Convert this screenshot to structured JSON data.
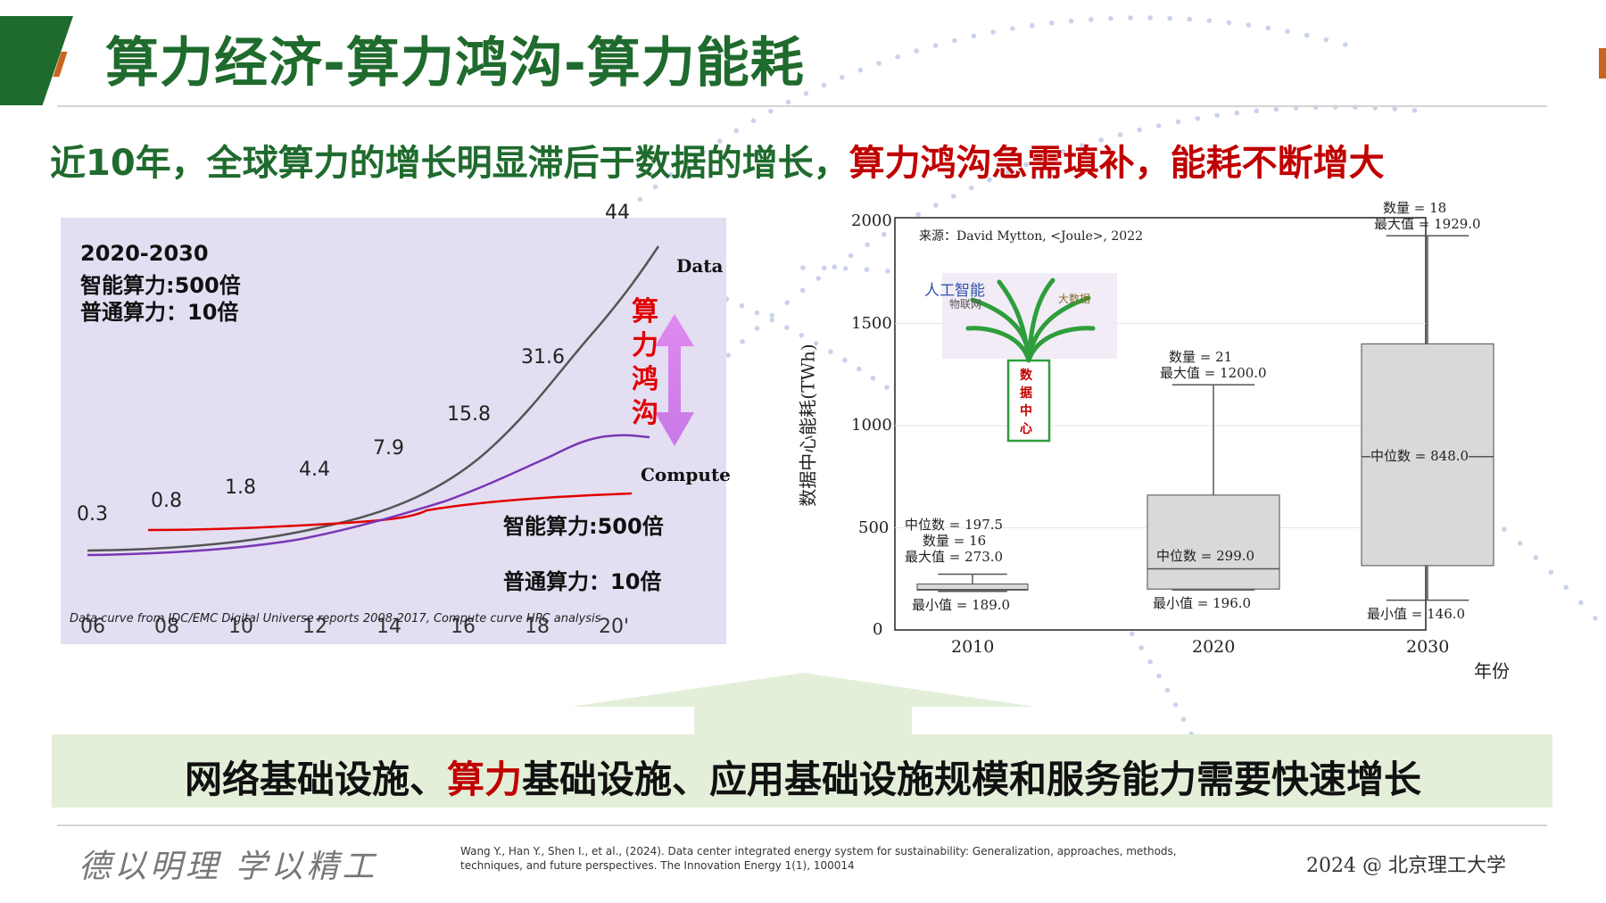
{
  "page": {
    "title": "算力经济-算力鸿沟-算力能耗",
    "subtitle_green": "近10年，全球算力的增长明显滞后于数据的增长，",
    "subtitle_red": "算力鸿沟急需填补，能耗不断增大",
    "banner_part1": "网络基础设施、",
    "banner_part2": "算力",
    "banner_part3": "基础设施、应用基础设施规模和服务能力需要快速增长",
    "motto": "德以明理 学以精工",
    "citation": "Wang Y., Han Y., Shen I., et al., (2024). Data center integrated energy system for sustainability: Generalization, approaches, methods, techniques, and future perspectives. The Innovation Energy 1(1), 100014",
    "copyright": "2024 @ 北京理工大学",
    "colors": {
      "green": "#1f6b2e",
      "red": "#c00000",
      "purple": "#7a36b5",
      "gray_curve": "#555555",
      "banner": "#e3efd9",
      "arrow": "#dd88ee"
    }
  },
  "chart_data": [
    {
      "type": "line",
      "notes": [
        "2020-2030",
        "智能算力:500倍",
        "普通算力：10倍"
      ],
      "x_ticks": [
        "06",
        "08",
        "10",
        "12",
        "14",
        "16",
        "18",
        "20'"
      ],
      "series": [
        {
          "name": "Data",
          "values": [
            0.3,
            0.8,
            1.8,
            4.4,
            7.9,
            15.8,
            31.6,
            44
          ],
          "labels": [
            "0.3",
            "0.8",
            "1.8",
            "4.4",
            "7.9",
            "15.8",
            "31.6",
            "44"
          ]
        },
        {
          "name": "Compute"
        },
        {
          "name": "智能算力:500倍"
        },
        {
          "name": "普通算力：10倍"
        }
      ],
      "gap_label": [
        "算",
        "力",
        "鸿",
        "沟"
      ],
      "source": "Data curve from IDC/EMC Digital Universe reports 2008-2017, Compute curve HPC analysis"
    },
    {
      "type": "box",
      "source": "来源：David Mytton, <Joule>, 2022",
      "ylabel": "数据中心能耗(TWh)",
      "xlabel": "年份",
      "ylim": [
        0,
        2000
      ],
      "y_ticks": [
        "0",
        "500",
        "1000",
        "1500",
        "2000"
      ],
      "inset_label": [
        "数",
        "据",
        "中",
        "心"
      ],
      "inset_words": [
        "人工智能",
        "物联网",
        "大数据"
      ],
      "boxes": [
        {
          "year": "2010",
          "min": 189.0,
          "q1": 195,
          "median": 197.5,
          "q3": 225,
          "max": 273.0,
          "count": 16,
          "labels": [
            "中位数 = 197.5",
            "数量 = 16",
            "最大值 = 273.0"
          ],
          "min_label": "最小值 = 189.0"
        },
        {
          "year": "2020",
          "min": 196.0,
          "q1": 200,
          "median": 299.0,
          "q3": 660,
          "max": 1200.0,
          "count": 21,
          "labels": [
            "数量 = 21",
            "最大值 = 1200.0"
          ],
          "median_label": "中位数 = 299.0",
          "min_label": "最小值 = 196.0"
        },
        {
          "year": "2030",
          "min": 146.0,
          "q1": 315,
          "median": 848.0,
          "q3": 1400,
          "max": 1929.0,
          "count": 18,
          "labels": [
            "数量 = 18",
            "最大值 = 1929.0"
          ],
          "median_label": "中位数 = 848.0",
          "min_label": "最小值 = 146.0"
        }
      ]
    }
  ]
}
